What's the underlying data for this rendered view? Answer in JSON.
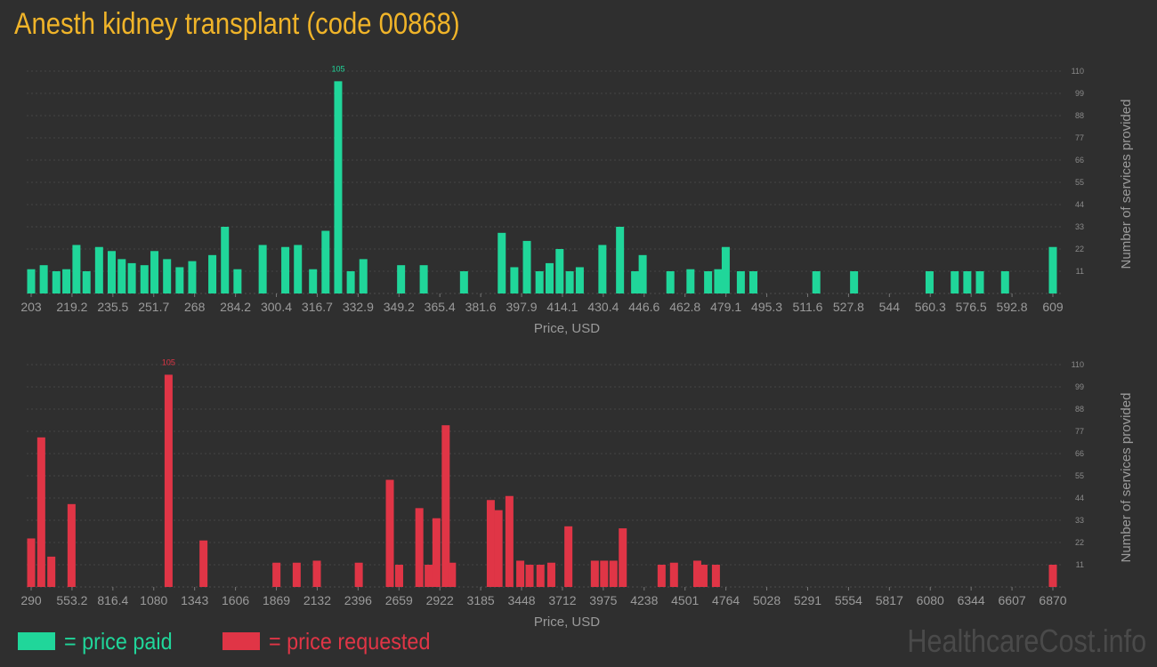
{
  "title": "Anesth kidney transplant (code 00868)",
  "colors": {
    "paid": "#20d69a",
    "requested": "#e03546",
    "title": "#f0b429"
  },
  "legend": {
    "paid": "= price paid",
    "requested": "= price requested"
  },
  "watermark": "HealthcareCost.info",
  "chart_data": [
    {
      "type": "bar",
      "title": "",
      "xlabel": "Price, USD",
      "ylabel": "Number of services provided",
      "ylim": [
        0,
        110
      ],
      "yticks": [
        11,
        22,
        33,
        44,
        55,
        66,
        77,
        88,
        99,
        110
      ],
      "xlim": [
        203,
        609
      ],
      "xticks": [
        "203",
        "219.2",
        "235.5",
        "251.7",
        "268",
        "284.2",
        "300.4",
        "316.7",
        "332.9",
        "349.2",
        "365.4",
        "381.6",
        "397.9",
        "414.1",
        "430.4",
        "446.6",
        "462.8",
        "479.1",
        "495.3",
        "511.6",
        "527.8",
        "544",
        "560.3",
        "576.5",
        "592.8",
        "609"
      ],
      "peak_label": "105",
      "series": [
        {
          "x": [
            203,
            208,
            213,
            217,
            221,
            225,
            230,
            235,
            239,
            243,
            248,
            252,
            257,
            262,
            267,
            275,
            280,
            285,
            295,
            304,
            309,
            315,
            320,
            325,
            330,
            335,
            350,
            359,
            375,
            390,
            395,
            400,
            405,
            409,
            413,
            417,
            421,
            430,
            437,
            443,
            446,
            457,
            465,
            472,
            476,
            479,
            485,
            490,
            515,
            530,
            560,
            570,
            575,
            580,
            590,
            609
          ],
          "values": [
            12,
            14,
            11,
            12,
            24,
            11,
            23,
            21,
            17,
            15,
            14,
            21,
            17,
            13,
            16,
            19,
            33,
            12,
            24,
            23,
            24,
            12,
            31,
            105,
            11,
            17,
            14,
            14,
            11,
            30,
            13,
            26,
            11,
            15,
            22,
            11,
            13,
            24,
            33,
            11,
            19,
            11,
            12,
            11,
            12,
            23,
            11,
            11,
            11,
            11,
            11,
            11,
            11,
            11,
            11,
            23
          ]
        }
      ]
    },
    {
      "type": "bar",
      "title": "",
      "xlabel": "Price, USD",
      "ylabel": "Number of services provided",
      "ylim": [
        0,
        110
      ],
      "yticks": [
        11,
        22,
        33,
        44,
        55,
        66,
        77,
        88,
        99,
        110
      ],
      "xlim": [
        290,
        6870
      ],
      "xticks": [
        "290",
        "553.2",
        "816.4",
        "1080",
        "1343",
        "1606",
        "1869",
        "2132",
        "2396",
        "2659",
        "2922",
        "3185",
        "3448",
        "3712",
        "3975",
        "4238",
        "4501",
        "4764",
        "5028",
        "5291",
        "5554",
        "5817",
        "6080",
        "6344",
        "6607",
        "6870"
      ],
      "peak_label": "105",
      "series": [
        {
          "x": [
            290,
            355,
            420,
            550,
            1175,
            1400,
            1870,
            2000,
            2130,
            2400,
            2600,
            2660,
            2790,
            2850,
            2900,
            2960,
            3000,
            3250,
            3300,
            3370,
            3440,
            3500,
            3570,
            3640,
            3750,
            3920,
            3980,
            4040,
            4100,
            4350,
            4430,
            4580,
            4620,
            4700,
            6870
          ],
          "values": [
            24,
            74,
            15,
            41,
            105,
            23,
            12,
            12,
            13,
            12,
            53,
            11,
            39,
            11,
            34,
            80,
            12,
            43,
            38,
            45,
            13,
            11,
            11,
            12,
            30,
            13,
            13,
            13,
            29,
            11,
            12,
            13,
            11,
            11,
            11
          ]
        }
      ]
    }
  ]
}
